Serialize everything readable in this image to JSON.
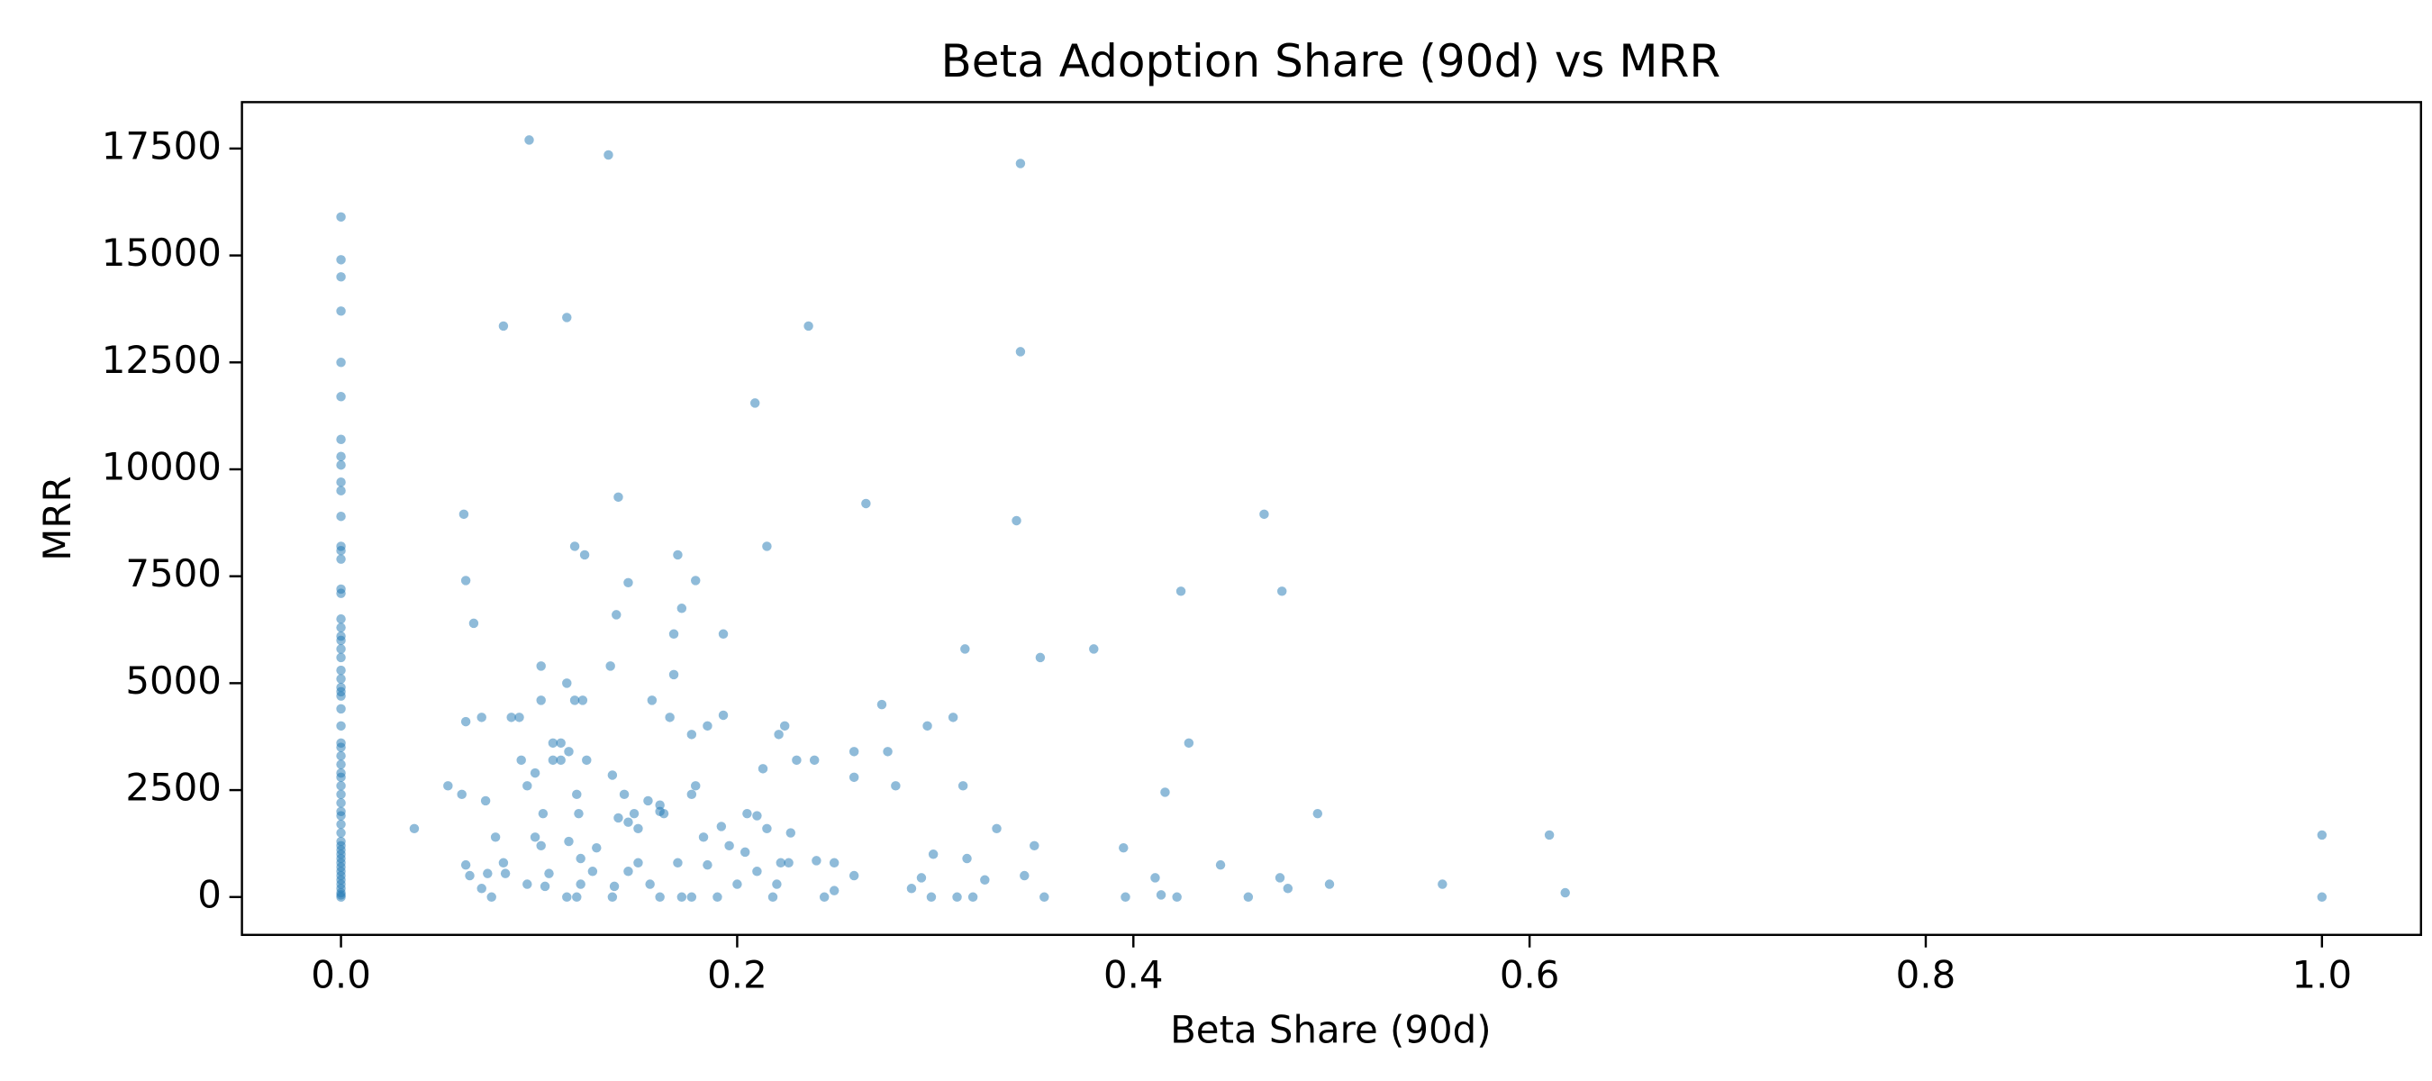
{
  "chart_data": {
    "type": "scatter",
    "title": "Beta Adoption Share (90d) vs MRR",
    "x_label": "Beta Share (90d)",
    "y_label": "MRR",
    "color": "#1f77b4",
    "xlim": [
      -0.05,
      1.05
    ],
    "ylim": [
      -885,
      18585
    ],
    "xticks": [
      {
        "value": 0,
        "label": "0.0"
      },
      {
        "value": 0.2,
        "label": "0.2"
      },
      {
        "value": 0.4,
        "label": "0.4"
      },
      {
        "value": 0.6,
        "label": "0.6"
      },
      {
        "value": 0.8,
        "label": "0.8"
      },
      {
        "value": 1,
        "label": "1.0"
      }
    ],
    "yticks": [
      0,
      2500,
      5000,
      7500,
      10000,
      12500,
      15000,
      17500
    ],
    "x": [
      0,
      0,
      0,
      0,
      0,
      0,
      0,
      0,
      0,
      0,
      0,
      0,
      0,
      0,
      0,
      0,
      0,
      0,
      0,
      0,
      0,
      0,
      0,
      0,
      0,
      0,
      0,
      0,
      0,
      0,
      0,
      0,
      0,
      0,
      0,
      0,
      0,
      0,
      0,
      0,
      0,
      0,
      0,
      0,
      0,
      0,
      0,
      0,
      0,
      0,
      0,
      0,
      0,
      0,
      0,
      0,
      0,
      0,
      0.095,
      0.135,
      0.343,
      0.082,
      0.114,
      0.236,
      0.343,
      0.209,
      0.062,
      0.14,
      0.265,
      0.341,
      0.466,
      0.118,
      0.123,
      0.17,
      0.215,
      0.424,
      0.475,
      0.063,
      0.145,
      0.179,
      0.172,
      0.139,
      0.067,
      0.168,
      0.193,
      0.315,
      0.38,
      0.353,
      0.101,
      0.136,
      0.168,
      0.114,
      0.101,
      0.118,
      0.122,
      0.157,
      0.273,
      0.193,
      0.063,
      0.071,
      0.086,
      0.09,
      0.166,
      0.309,
      0.185,
      0.296,
      0.224,
      0.221,
      0.177,
      0.107,
      0.111,
      0.428,
      0.115,
      0.259,
      0.276,
      0.091,
      0.107,
      0.111,
      0.124,
      0.23,
      0.239,
      0.213,
      0.098,
      0.137,
      0.259,
      0.314,
      0.28,
      0.179,
      0.054,
      0.094,
      0.061,
      0.416,
      0.119,
      0.143,
      0.177,
      0.073,
      0.155,
      0.161,
      0.493,
      0.205,
      0.21,
      0.102,
      0.12,
      0.14,
      0.145,
      0.148,
      0.161,
      0.163,
      0.037,
      0.15,
      0.192,
      0.215,
      0.227,
      0.331,
      0.61,
      1,
      0.078,
      0.115,
      0.183,
      0.098,
      0.35,
      0.395,
      0.101,
      0.129,
      0.196,
      0.299,
      0.316,
      0.204,
      0.222,
      0.226,
      0.24,
      0.249,
      0.444,
      0.082,
      0.121,
      0.15,
      0.17,
      0.185,
      0.063,
      0.065,
      0.074,
      0.083,
      0.105,
      0.127,
      0.145,
      0.21,
      0.293,
      0.325,
      0.345,
      0.411,
      0.474,
      0.499,
      0.556,
      0.071,
      0.094,
      0.103,
      0.121,
      0.138,
      0.156,
      0.2,
      0.22,
      0.259,
      0.288,
      0.478,
      0.618,
      0.249,
      0.244,
      0.076,
      0.114,
      0.119,
      0.137,
      0.161,
      0.172,
      0.177,
      0.19,
      0.218,
      0.298,
      0.311,
      0.319,
      0.355,
      0.396,
      0.414,
      0.422,
      0.458,
      1
    ],
    "values": [
      15900,
      14900,
      14500,
      13700,
      12500,
      11700,
      10700,
      10300,
      10100,
      9700,
      9500,
      8900,
      8200,
      8100,
      7900,
      7200,
      7100,
      6500,
      6300,
      6100,
      6000,
      5800,
      5600,
      5300,
      5100,
      4900,
      4800,
      4700,
      4400,
      4000,
      3600,
      3500,
      3300,
      3100,
      2900,
      2800,
      2600,
      2400,
      2200,
      2000,
      1900,
      1700,
      1500,
      1300,
      1200,
      1100,
      1000,
      900,
      800,
      700,
      600,
      500,
      400,
      300,
      200,
      100,
      50,
      0,
      17700,
      17350,
      17150,
      13350,
      13550,
      13350,
      12750,
      11550,
      8950,
      9350,
      9200,
      8800,
      8950,
      8200,
      8000,
      8000,
      8200,
      7150,
      7150,
      7400,
      7350,
      7400,
      6750,
      6600,
      6400,
      6150,
      6150,
      5800,
      5800,
      5600,
      5400,
      5400,
      5200,
      5000,
      4600,
      4600,
      4600,
      4600,
      4500,
      4250,
      4100,
      4200,
      4200,
      4200,
      4200,
      4200,
      4000,
      4000,
      4000,
      3800,
      3800,
      3600,
      3600,
      3600,
      3400,
      3400,
      3400,
      3200,
      3200,
      3200,
      3200,
      3200,
      3200,
      3000,
      2900,
      2850,
      2800,
      2600,
      2600,
      2600,
      2600,
      2600,
      2400,
      2450,
      2400,
      2400,
      2400,
      2250,
      2250,
      2150,
      1950,
      1950,
      1900,
      1950,
      1950,
      1850,
      1750,
      1950,
      2000,
      1950,
      1600,
      1600,
      1650,
      1600,
      1500,
      1600,
      1450,
      1450,
      1400,
      1300,
      1400,
      1400,
      1200,
      1150,
      1200,
      1150,
      1200,
      1000,
      900,
      1050,
      800,
      800,
      850,
      800,
      750,
      800,
      900,
      800,
      800,
      750,
      750,
      500,
      550,
      550,
      550,
      600,
      600,
      600,
      450,
      400,
      500,
      450,
      450,
      300,
      300,
      200,
      300,
      250,
      300,
      250,
      300,
      300,
      300,
      500,
      200,
      200,
      100,
      150,
      0,
      0,
      0,
      0,
      0,
      0,
      0,
      0,
      0,
      0,
      0,
      0,
      0,
      0,
      0,
      50,
      0,
      0,
      0
    ]
  }
}
